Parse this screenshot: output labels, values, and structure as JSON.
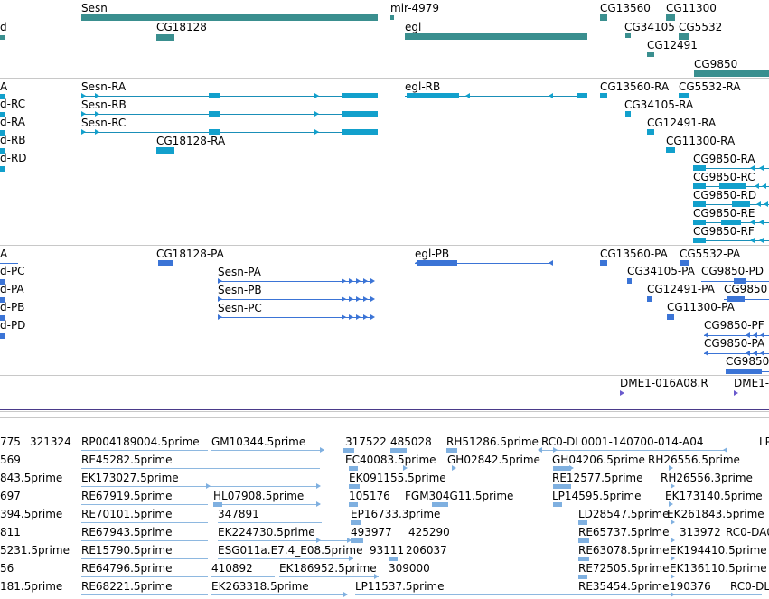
{
  "genes": {
    "labels": [
      "d",
      "Sesn",
      "CG18128",
      "mir-4979",
      "egl",
      "CG13560",
      "CG11300",
      "CG34105",
      "CG5532",
      "CG12491",
      "CG9850"
    ]
  },
  "transcripts": {
    "labels": [
      "A",
      "d-RC",
      "d-RA",
      "d-RB",
      "d-RD",
      "Sesn-RA",
      "Sesn-RB",
      "Sesn-RC",
      "CG18128-RA",
      "egl-RB",
      "CG13560-RA",
      "CG5532-RA",
      "CG34105-RA",
      "CG12491-RA",
      "CG11300-RA",
      "CG9850-RA",
      "CG9850-RC",
      "CG9850-RD",
      "CG9850-RE",
      "CG9850-RF"
    ]
  },
  "proteins": {
    "labels": [
      "A",
      "d-PC",
      "d-PA",
      "d-PB",
      "d-PD",
      "CG18128-PA",
      "Sesn-PA",
      "Sesn-PB",
      "Sesn-PC",
      "egl-PB",
      "CG13560-PA",
      "CG5532-PA",
      "CG34105-PA",
      "CG9850-PD",
      "CG12491-PA",
      "CG9850",
      "CG11300-PA",
      "CG9850-PF",
      "CG9850-PA",
      "CG9850"
    ]
  },
  "clones": {
    "labels": [
      "DME1-016A08.R",
      "DME1-"
    ]
  },
  "ests": {
    "labels": [
      "775",
      "321324",
      "RP004189004.5prime",
      "GM10344.5prime",
      "317522",
      "485028",
      "RH51286.5prime",
      "RC0-DL0001-140700-014-A04",
      "LP",
      "569",
      "RE45282.5prime",
      "EC40083.5prime",
      "GH02842.5prime",
      "GH04206.5prime",
      "RH26556.5prime",
      "843.5prime",
      "EK173027.5prime",
      "EK091155.5prime",
      "RE12577.5prime",
      "RH26556.3prime",
      "697",
      "RE67919.5prime",
      "HL07908.5prime",
      "105176",
      "FGM304G11.5prime",
      "LP14595.5prime",
      "EK173140.5prime",
      "394.5prime",
      "RE70101.5prime",
      "347891",
      "EP16733.3prime",
      "LD28547.5prime",
      "EK261843.5prime",
      "811",
      "RE67943.5prime",
      "EK224730.5prime",
      "493977",
      "425290",
      "RE65737.5prime",
      "313972",
      "RC0-DA0",
      "5231.5prime",
      "RE15790.5prime",
      "ESG011a.E7.4_E08.5prime",
      "93111",
      "206037",
      "RE63078.5prime",
      "EK194410.5prime",
      "56",
      "RE64796.5prime",
      "410892",
      "EK186952.5prime",
      "309000",
      "RE72505.5prime",
      "EK136110.5prime",
      "181.5prime",
      "RE68221.5prime",
      "EK263318.5prime",
      "LP11537.5prime",
      "RE35454.5prime",
      "190376",
      "RC0-DL0"
    ]
  },
  "colors": {
    "gene": "#3a8f8f",
    "transcript": "#12a0cc",
    "protein": "#3b74d6",
    "est": "#7fb0e0",
    "clone": "#6a5acd",
    "divider": "#c8c8c8",
    "ruler": "#4a3a8a"
  }
}
